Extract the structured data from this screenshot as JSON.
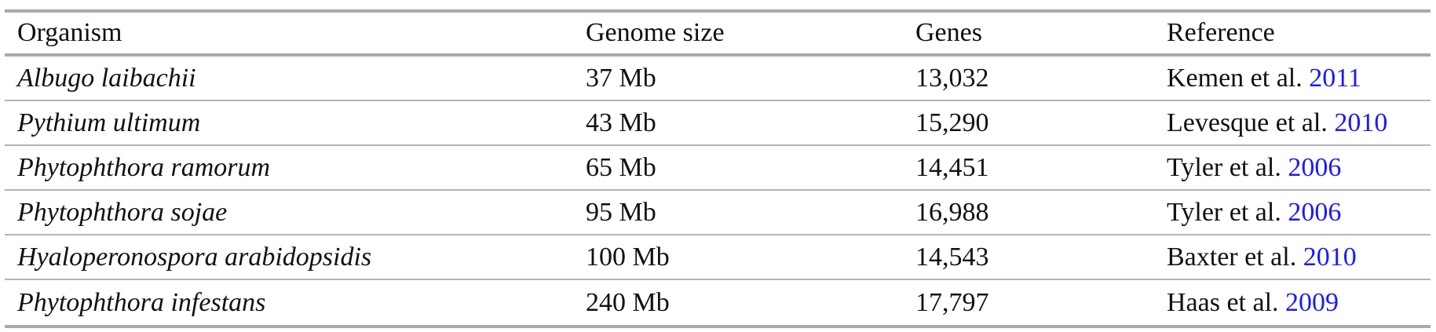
{
  "table": {
    "headers": [
      "Organism",
      "Genome size",
      "Genes",
      "Reference"
    ],
    "rows": [
      {
        "organism": "Albugo laibachii",
        "genome_size": "37 Mb",
        "genes": "13,032",
        "ref_author": "Kemen et al.",
        "ref_year": "2011"
      },
      {
        "organism": "Pythium ultimum",
        "genome_size": "43 Mb",
        "genes": "15,290",
        "ref_author": "Levesque et al.",
        "ref_year": "2010"
      },
      {
        "organism": "Phytophthora ramorum",
        "genome_size": "65 Mb",
        "genes": "14,451",
        "ref_author": "Tyler et al.",
        "ref_year": "2006"
      },
      {
        "organism": "Phytophthora sojae",
        "genome_size": "95 Mb",
        "genes": "16,988",
        "ref_author": "Tyler et al.",
        "ref_year": "2006"
      },
      {
        "organism": "Hyaloperonospora arabidopsidis",
        "genome_size": "100 Mb",
        "genes": "14,543",
        "ref_author": "Baxter et al.",
        "ref_year": "2010"
      },
      {
        "organism": "Phytophthora infestans",
        "genome_size": "240 Mb",
        "genes": "17,797",
        "ref_author": "Haas et al.",
        "ref_year": "2009"
      }
    ]
  },
  "colors": {
    "link": "#1a1aff",
    "rule": "#a9a9a9",
    "text": "#111111"
  }
}
